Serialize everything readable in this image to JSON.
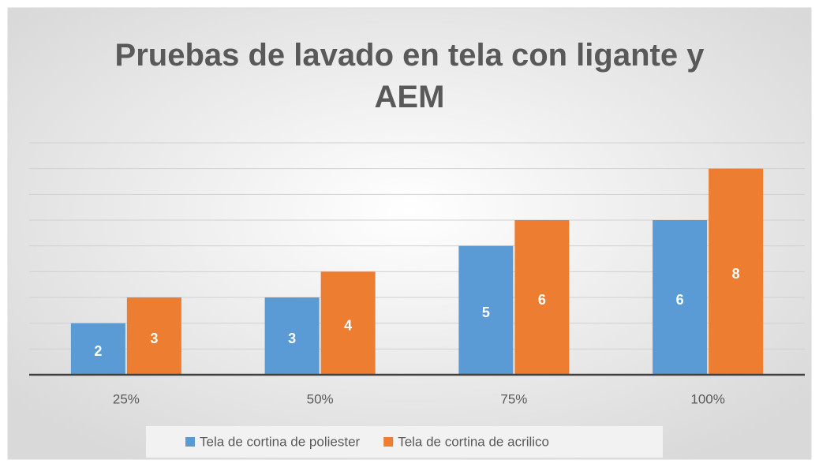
{
  "chart_data": {
    "type": "bar",
    "title": "Pruebas de lavado en tela con ligante y AEM",
    "categories": [
      "25%",
      "50%",
      "75%",
      "100%"
    ],
    "series": [
      {
        "name": "Tela de cortina de poliester",
        "color": "#5b9bd5",
        "values": [
          2,
          3,
          5,
          6
        ]
      },
      {
        "name": "Tela de cortina de acrilico",
        "color": "#ed7d31",
        "values": [
          3,
          4,
          6,
          8
        ]
      }
    ],
    "ylim": [
      0,
      9
    ],
    "yticks": [
      0,
      1,
      2,
      3,
      4,
      5,
      6,
      7,
      8,
      9
    ],
    "grid": true,
    "legend": "bottom"
  }
}
